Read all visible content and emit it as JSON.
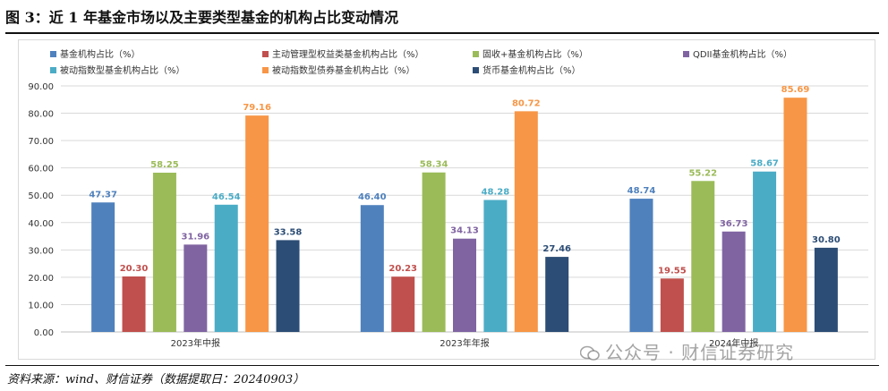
{
  "figure_title": "图 3：近 1 年基金市场以及主要类型基金的机构占比变动情况",
  "source_note": "资料来源：wind、财信证券（数据提取日：20240903）",
  "watermark": "公众号 · 财信证券研究",
  "chart_data": {
    "type": "bar",
    "categories": [
      "2023年中报",
      "2023年年报",
      "2024年中报"
    ],
    "ylim": [
      0,
      90
    ],
    "yticks": [
      "0.00",
      "10.00",
      "20.00",
      "30.00",
      "40.00",
      "50.00",
      "60.00",
      "70.00",
      "80.00",
      "90.00"
    ],
    "grid": true,
    "legend_position": "top-left",
    "series": [
      {
        "name": "基金机构占比（%）",
        "color": "#4f81bd",
        "values": [
          47.37,
          46.4,
          48.74
        ],
        "labels": [
          "47.37",
          "46.40",
          "48.74"
        ]
      },
      {
        "name": "主动管理型权益类基金机构占比（%）",
        "color": "#c0504d",
        "values": [
          20.3,
          20.23,
          19.55
        ],
        "labels": [
          "20.30",
          "20.23",
          "19.55"
        ]
      },
      {
        "name": "固收+基金机构占比（%）",
        "color": "#9bbb59",
        "values": [
          58.25,
          58.34,
          55.22
        ],
        "labels": [
          "58.25",
          "58.34",
          "55.22"
        ]
      },
      {
        "name": "QDII基金机构占比（%）",
        "color": "#8064a2",
        "values": [
          31.96,
          34.13,
          36.73
        ],
        "labels": [
          "31.96",
          "34.13",
          "36.73"
        ]
      },
      {
        "name": "被动指数型基金机构占比（%）",
        "color": "#4bacc6",
        "values": [
          46.54,
          48.28,
          58.67
        ],
        "labels": [
          "46.54",
          "48.28",
          "58.67"
        ]
      },
      {
        "name": "被动指数型债券基金机构占比（%）",
        "color": "#f79646",
        "values": [
          79.16,
          80.72,
          85.69
        ],
        "labels": [
          "79.16",
          "80.72",
          "85.69"
        ]
      },
      {
        "name": "货币基金机构占比（%）",
        "color": "#2c4d75",
        "values": [
          33.58,
          27.46,
          30.8
        ],
        "labels": [
          "33.58",
          "27.46",
          "30.80"
        ]
      }
    ]
  }
}
